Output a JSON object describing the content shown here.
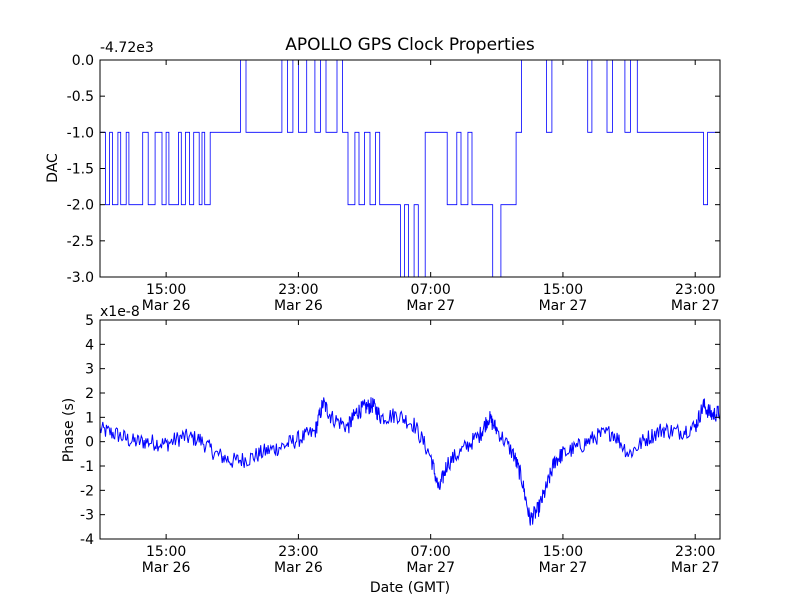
{
  "figure": {
    "title": "APOLLO GPS Clock Properties",
    "xlabel": "Date (GMT)",
    "line_color": "#0000ff"
  },
  "chart_data": [
    {
      "type": "line",
      "ylabel": "DAC",
      "offset_label": "-4.72e3",
      "ylim": [
        -3.0,
        0.0
      ],
      "yticks": [
        {
          "value": 0.0,
          "label": "0.0"
        },
        {
          "value": -0.5,
          "label": "-0.5"
        },
        {
          "value": -1.0,
          "label": "-1.0"
        },
        {
          "value": -1.5,
          "label": "-1.5"
        },
        {
          "value": -2.0,
          "label": "-2.0"
        },
        {
          "value": -2.5,
          "label": "-2.5"
        },
        {
          "value": -3.0,
          "label": "-3.0"
        }
      ],
      "xlim": [
        "2024-03-26T11:00",
        "2024-03-28T00:30"
      ],
      "xticks": [
        {
          "value": "2024-03-26T15:00",
          "time": "15:00",
          "date": "Mar 26"
        },
        {
          "value": "2024-03-26T23:00",
          "time": "23:00",
          "date": "Mar 26"
        },
        {
          "value": "2024-03-27T07:00",
          "time": "07:00",
          "date": "Mar 27"
        },
        {
          "value": "2024-03-27T15:00",
          "time": "15:00",
          "date": "Mar 27"
        },
        {
          "value": "2024-03-27T23:00",
          "time": "23:00",
          "date": "Mar 27"
        }
      ],
      "series": [
        {
          "points": [
            [
              "2024-03-26T11:00",
              -1
            ],
            [
              "2024-03-26T11:20",
              -2
            ],
            [
              "2024-03-26T11:35",
              -1
            ],
            [
              "2024-03-26T11:45",
              -2
            ],
            [
              "2024-03-26T12:05",
              -1
            ],
            [
              "2024-03-26T12:15",
              -2
            ],
            [
              "2024-03-26T12:35",
              -1
            ],
            [
              "2024-03-26T12:45",
              -2
            ],
            [
              "2024-03-26T13:35",
              -1
            ],
            [
              "2024-03-26T13:55",
              -2
            ],
            [
              "2024-03-26T14:20",
              -1
            ],
            [
              "2024-03-26T14:45",
              -2
            ],
            [
              "2024-03-26T15:00",
              -1
            ],
            [
              "2024-03-26T15:10",
              -2
            ],
            [
              "2024-03-26T15:45",
              -1
            ],
            [
              "2024-03-26T15:55",
              -2
            ],
            [
              "2024-03-26T16:10",
              -1
            ],
            [
              "2024-03-26T16:25",
              -2
            ],
            [
              "2024-03-26T16:40",
              -1
            ],
            [
              "2024-03-26T17:00",
              -2
            ],
            [
              "2024-03-26T17:10",
              -1
            ],
            [
              "2024-03-26T17:20",
              -2
            ],
            [
              "2024-03-26T17:40",
              -1
            ],
            [
              "2024-03-26T19:30",
              0
            ],
            [
              "2024-03-26T19:50",
              -1
            ],
            [
              "2024-03-26T22:00",
              0
            ],
            [
              "2024-03-26T22:20",
              -1
            ],
            [
              "2024-03-26T22:40",
              0
            ],
            [
              "2024-03-26T23:00",
              -1
            ],
            [
              "2024-03-26T23:30",
              0
            ],
            [
              "2024-03-27T00:00",
              -1
            ],
            [
              "2024-03-27T00:20",
              0
            ],
            [
              "2024-03-27T00:40",
              -1
            ],
            [
              "2024-03-27T01:20",
              0
            ],
            [
              "2024-03-27T01:40",
              -1
            ],
            [
              "2024-03-27T02:00",
              -2
            ],
            [
              "2024-03-27T02:25",
              -1
            ],
            [
              "2024-03-27T02:40",
              -2
            ],
            [
              "2024-03-27T03:00",
              -1
            ],
            [
              "2024-03-27T03:20",
              -2
            ],
            [
              "2024-03-27T03:40",
              -1
            ],
            [
              "2024-03-27T03:55",
              -2
            ],
            [
              "2024-03-27T05:10",
              -3
            ],
            [
              "2024-03-27T05:25",
              -2
            ],
            [
              "2024-03-27T05:40",
              -3
            ],
            [
              "2024-03-27T06:00",
              -2
            ],
            [
              "2024-03-27T06:15",
              -3
            ],
            [
              "2024-03-27T06:40",
              -1
            ],
            [
              "2024-03-27T08:00",
              -2
            ],
            [
              "2024-03-27T08:35",
              -1
            ],
            [
              "2024-03-27T08:50",
              -2
            ],
            [
              "2024-03-27T09:15",
              -1
            ],
            [
              "2024-03-27T09:30",
              -2
            ],
            [
              "2024-03-27T10:45",
              -3
            ],
            [
              "2024-03-27T11:15",
              -2
            ],
            [
              "2024-03-27T12:10",
              -1
            ],
            [
              "2024-03-27T12:30",
              0
            ],
            [
              "2024-03-27T14:00",
              -1
            ],
            [
              "2024-03-27T14:20",
              0
            ],
            [
              "2024-03-27T16:30",
              -1
            ],
            [
              "2024-03-27T16:45",
              0
            ],
            [
              "2024-03-27T17:40",
              -1
            ],
            [
              "2024-03-27T18:00",
              0
            ],
            [
              "2024-03-27T18:45",
              -1
            ],
            [
              "2024-03-27T19:05",
              0
            ],
            [
              "2024-03-27T19:30",
              -1
            ],
            [
              "2024-03-27T23:30",
              -2
            ],
            [
              "2024-03-27T23:45",
              -1
            ],
            [
              "2024-03-28T00:30",
              -1
            ]
          ]
        }
      ]
    },
    {
      "type": "line",
      "ylabel": "Phase (s)",
      "offset_label": "x1e-8",
      "ylim": [
        -4,
        5
      ],
      "yticks": [
        {
          "value": 5,
          "label": "5"
        },
        {
          "value": 4,
          "label": "4"
        },
        {
          "value": 3,
          "label": "3"
        },
        {
          "value": 2,
          "label": "2"
        },
        {
          "value": 1,
          "label": "1"
        },
        {
          "value": 0,
          "label": "0"
        },
        {
          "value": -1,
          "label": "-1"
        },
        {
          "value": -2,
          "label": "-2"
        },
        {
          "value": -3,
          "label": "-3"
        },
        {
          "value": -4,
          "label": "-4"
        }
      ],
      "xlim": [
        "2024-03-26T11:00",
        "2024-03-28T00:30"
      ],
      "xticks": [
        {
          "value": "2024-03-26T15:00",
          "time": "15:00",
          "date": "Mar 26"
        },
        {
          "value": "2024-03-26T23:00",
          "time": "23:00",
          "date": "Mar 26"
        },
        {
          "value": "2024-03-27T07:00",
          "time": "07:00",
          "date": "Mar 27"
        },
        {
          "value": "2024-03-27T15:00",
          "time": "15:00",
          "date": "Mar 27"
        },
        {
          "value": "2024-03-27T23:00",
          "time": "23:00",
          "date": "Mar 27"
        }
      ],
      "series": [
        {
          "points": [
            [
              "2024-03-26T11:00",
              0.5
            ],
            [
              "2024-03-26T12:00",
              0.3
            ],
            [
              "2024-03-26T13:00",
              0.0
            ],
            [
              "2024-03-26T14:00",
              0.0
            ],
            [
              "2024-03-26T15:00",
              -0.1
            ],
            [
              "2024-03-26T16:00",
              0.2
            ],
            [
              "2024-03-26T17:00",
              0.1
            ],
            [
              "2024-03-26T18:00",
              -0.5
            ],
            [
              "2024-03-26T19:00",
              -0.8
            ],
            [
              "2024-03-26T20:00",
              -0.7
            ],
            [
              "2024-03-26T21:00",
              -0.4
            ],
            [
              "2024-03-26T22:00",
              -0.2
            ],
            [
              "2024-03-26T23:00",
              0.1
            ],
            [
              "2024-03-27T00:00",
              0.4
            ],
            [
              "2024-03-27T00:30",
              1.6
            ],
            [
              "2024-03-27T01:00",
              1.0
            ],
            [
              "2024-03-27T02:00",
              0.6
            ],
            [
              "2024-03-27T02:30",
              1.2
            ],
            [
              "2024-03-27T03:00",
              1.4
            ],
            [
              "2024-03-27T03:30",
              1.5
            ],
            [
              "2024-03-27T04:00",
              1.0
            ],
            [
              "2024-03-27T05:00",
              1.1
            ],
            [
              "2024-03-27T06:00",
              0.7
            ],
            [
              "2024-03-27T07:00",
              -0.6
            ],
            [
              "2024-03-27T07:30",
              -2.0
            ],
            [
              "2024-03-27T08:00",
              -0.9
            ],
            [
              "2024-03-27T09:00",
              -0.3
            ],
            [
              "2024-03-27T10:00",
              0.3
            ],
            [
              "2024-03-27T10:30",
              1.0
            ],
            [
              "2024-03-27T11:00",
              0.5
            ],
            [
              "2024-03-27T12:00",
              -0.5
            ],
            [
              "2024-03-27T12:30",
              -1.5
            ],
            [
              "2024-03-27T13:00",
              -3.2
            ],
            [
              "2024-03-27T13:30",
              -2.8
            ],
            [
              "2024-03-27T14:00",
              -1.9
            ],
            [
              "2024-03-27T14:30",
              -0.8
            ],
            [
              "2024-03-27T15:00",
              -0.5
            ],
            [
              "2024-03-27T16:00",
              -0.2
            ],
            [
              "2024-03-27T17:00",
              0.2
            ],
            [
              "2024-03-27T18:00",
              0.4
            ],
            [
              "2024-03-27T19:00",
              -0.5
            ],
            [
              "2024-03-27T20:00",
              0.1
            ],
            [
              "2024-03-27T21:00",
              0.5
            ],
            [
              "2024-03-27T22:00",
              0.4
            ],
            [
              "2024-03-27T23:00",
              0.6
            ],
            [
              "2024-03-27T23:30",
              1.5
            ],
            [
              "2024-03-28T00:00",
              1.1
            ],
            [
              "2024-03-28T00:30",
              1.2
            ]
          ]
        }
      ]
    }
  ]
}
